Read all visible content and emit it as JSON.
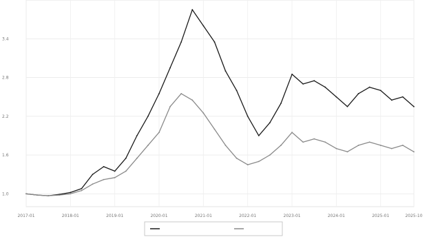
{
  "chart_data": {
    "type": "line",
    "title": "",
    "xlabel": "",
    "ylabel": "",
    "grid": true,
    "legend": "bottom-center",
    "x": [
      "2017-01",
      "2017-04",
      "2017-07",
      "2017-10",
      "2018-01",
      "2018-04",
      "2018-07",
      "2018-10",
      "2019-01",
      "2019-04",
      "2019-07",
      "2019-10",
      "2020-01",
      "2020-04",
      "2020-07",
      "2020-10",
      "2021-01",
      "2021-04",
      "2021-07",
      "2021-10",
      "2022-01",
      "2022-04",
      "2022-07",
      "2022-10",
      "2023-01",
      "2023-04",
      "2023-07",
      "2023-10",
      "2024-01",
      "2024-04",
      "2024-07",
      "2024-10",
      "2025-01",
      "2025-04",
      "2025-07",
      "2025-10"
    ],
    "series": [
      {
        "name": "",
        "color": "#1a1a1a",
        "values": [
          1.0,
          0.98,
          0.97,
          0.99,
          1.02,
          1.08,
          1.3,
          1.42,
          1.35,
          1.55,
          1.9,
          2.2,
          2.55,
          2.95,
          3.35,
          3.85,
          3.6,
          3.35,
          2.9,
          2.6,
          2.2,
          1.9,
          2.1,
          2.4,
          2.85,
          2.7,
          2.75,
          2.65,
          2.5,
          2.35,
          2.55,
          2.65,
          2.6,
          2.45,
          2.5,
          2.35
        ]
      },
      {
        "name": "",
        "color": "#8a8a8a",
        "values": [
          1.0,
          0.98,
          0.97,
          0.98,
          1.0,
          1.05,
          1.15,
          1.22,
          1.25,
          1.35,
          1.55,
          1.75,
          1.95,
          2.35,
          2.55,
          2.45,
          2.25,
          2.0,
          1.75,
          1.55,
          1.45,
          1.5,
          1.6,
          1.75,
          1.95,
          1.8,
          1.85,
          1.8,
          1.7,
          1.65,
          1.75,
          1.8,
          1.75,
          1.7,
          1.75,
          1.65
        ]
      }
    ],
    "xlim": [
      "2017-01",
      "2025-10"
    ],
    "ylim": [
      0.8,
      4.0
    ]
  },
  "legend": {
    "series1_label": "",
    "series2_label": ""
  }
}
